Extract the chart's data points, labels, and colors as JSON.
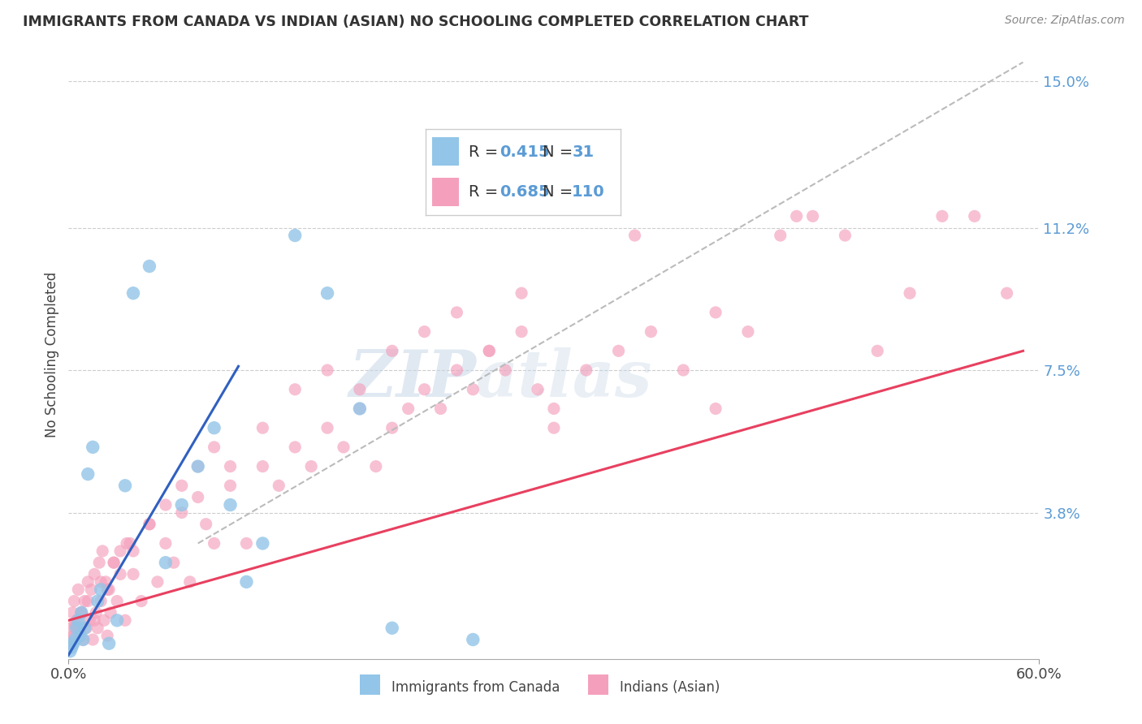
{
  "title": "IMMIGRANTS FROM CANADA VS INDIAN (ASIAN) NO SCHOOLING COMPLETED CORRELATION CHART",
  "source_text": "Source: ZipAtlas.com",
  "ylabel": "No Schooling Completed",
  "legend_label1": "Immigrants from Canada",
  "legend_label2": "Indians (Asian)",
  "R1": 0.415,
  "N1": 31,
  "R2": 0.685,
  "N2": 110,
  "xlim": [
    0.0,
    60.0
  ],
  "ylim": [
    0.0,
    15.8
  ],
  "yticks": [
    3.8,
    7.5,
    11.2,
    15.0
  ],
  "ytick_labels": [
    "3.8%",
    "7.5%",
    "11.2%",
    "15.0%"
  ],
  "color_blue": "#92C5E8",
  "color_pink": "#F4A0BC",
  "color_blue_line": "#3060C0",
  "color_pink_line": "#E84060",
  "color_dashed": "#BBBBBB",
  "watermark_zip": "ZIP",
  "watermark_atlas": "atlas",
  "background_color": "#FFFFFF",
  "grid_color": "#CCCCCC",
  "title_color": "#333333",
  "axis_label_color": "#5B9BD5",
  "canada_x": [
    0.1,
    0.2,
    0.3,
    0.4,
    0.5,
    0.6,
    0.7,
    0.8,
    0.9,
    1.0,
    1.2,
    1.5,
    1.8,
    2.0,
    2.5,
    3.0,
    3.5,
    4.0,
    5.0,
    6.0,
    7.0,
    8.0,
    9.0,
    10.0,
    11.0,
    12.0,
    14.0,
    16.0,
    18.0,
    20.0,
    25.0
  ],
  "canada_y": [
    0.2,
    0.3,
    0.4,
    0.5,
    0.8,
    1.0,
    0.6,
    1.2,
    0.5,
    0.8,
    4.8,
    5.5,
    1.5,
    1.8,
    0.4,
    1.0,
    4.5,
    9.5,
    10.2,
    2.5,
    4.0,
    5.0,
    6.0,
    4.0,
    2.0,
    3.0,
    11.0,
    9.5,
    6.5,
    0.8,
    0.5
  ],
  "indian_x": [
    0.05,
    0.1,
    0.15,
    0.2,
    0.25,
    0.3,
    0.35,
    0.4,
    0.5,
    0.6,
    0.7,
    0.8,
    0.9,
    1.0,
    1.1,
    1.2,
    1.3,
    1.4,
    1.5,
    1.6,
    1.7,
    1.8,
    1.9,
    2.0,
    2.1,
    2.2,
    2.3,
    2.4,
    2.5,
    2.6,
    2.8,
    3.0,
    3.2,
    3.5,
    3.8,
    4.0,
    4.5,
    5.0,
    5.5,
    6.0,
    6.5,
    7.0,
    7.5,
    8.0,
    8.5,
    9.0,
    10.0,
    11.0,
    12.0,
    13.0,
    14.0,
    15.0,
    16.0,
    17.0,
    18.0,
    19.0,
    20.0,
    21.0,
    22.0,
    23.0,
    24.0,
    25.0,
    26.0,
    27.0,
    28.0,
    29.0,
    30.0,
    32.0,
    34.0,
    36.0,
    38.0,
    40.0,
    42.0,
    44.0,
    46.0,
    48.0,
    50.0,
    52.0,
    54.0,
    56.0,
    58.0,
    0.4,
    0.8,
    1.2,
    1.6,
    2.0,
    2.4,
    2.8,
    3.2,
    3.6,
    4.0,
    5.0,
    6.0,
    7.0,
    8.0,
    9.0,
    10.0,
    12.0,
    14.0,
    16.0,
    18.0,
    20.0,
    22.0,
    24.0,
    26.0,
    28.0,
    30.0,
    35.0,
    40.0,
    45.0
  ],
  "indian_y": [
    0.3,
    0.5,
    0.8,
    0.4,
    1.2,
    0.6,
    1.5,
    0.9,
    1.0,
    1.8,
    0.7,
    1.2,
    0.5,
    1.5,
    0.8,
    2.0,
    1.0,
    1.8,
    0.5,
    2.2,
    1.2,
    0.8,
    2.5,
    1.5,
    2.8,
    1.0,
    2.0,
    0.6,
    1.8,
    1.2,
    2.5,
    1.5,
    2.8,
    1.0,
    3.0,
    2.2,
    1.5,
    3.5,
    2.0,
    3.0,
    2.5,
    3.8,
    2.0,
    4.2,
    3.5,
    3.0,
    4.5,
    3.0,
    5.0,
    4.5,
    5.5,
    5.0,
    6.0,
    5.5,
    6.5,
    5.0,
    6.0,
    6.5,
    7.0,
    6.5,
    7.5,
    7.0,
    8.0,
    7.5,
    8.5,
    7.0,
    6.5,
    7.5,
    8.0,
    8.5,
    7.5,
    9.0,
    8.5,
    11.0,
    11.5,
    11.0,
    8.0,
    9.5,
    11.5,
    11.5,
    9.5,
    0.8,
    1.2,
    1.5,
    1.0,
    2.0,
    1.8,
    2.5,
    2.2,
    3.0,
    2.8,
    3.5,
    4.0,
    4.5,
    5.0,
    5.5,
    5.0,
    6.0,
    7.0,
    7.5,
    7.0,
    8.0,
    8.5,
    9.0,
    8.0,
    9.5,
    6.0,
    11.0,
    6.5,
    11.5
  ],
  "blue_line_x": [
    0.0,
    10.5
  ],
  "blue_line_y": [
    0.1,
    7.6
  ],
  "pink_line_x": [
    0.0,
    59.0
  ],
  "pink_line_y": [
    1.0,
    8.0
  ],
  "dashed_line_x": [
    8.0,
    59.0
  ],
  "dashed_line_y": [
    3.0,
    15.5
  ]
}
